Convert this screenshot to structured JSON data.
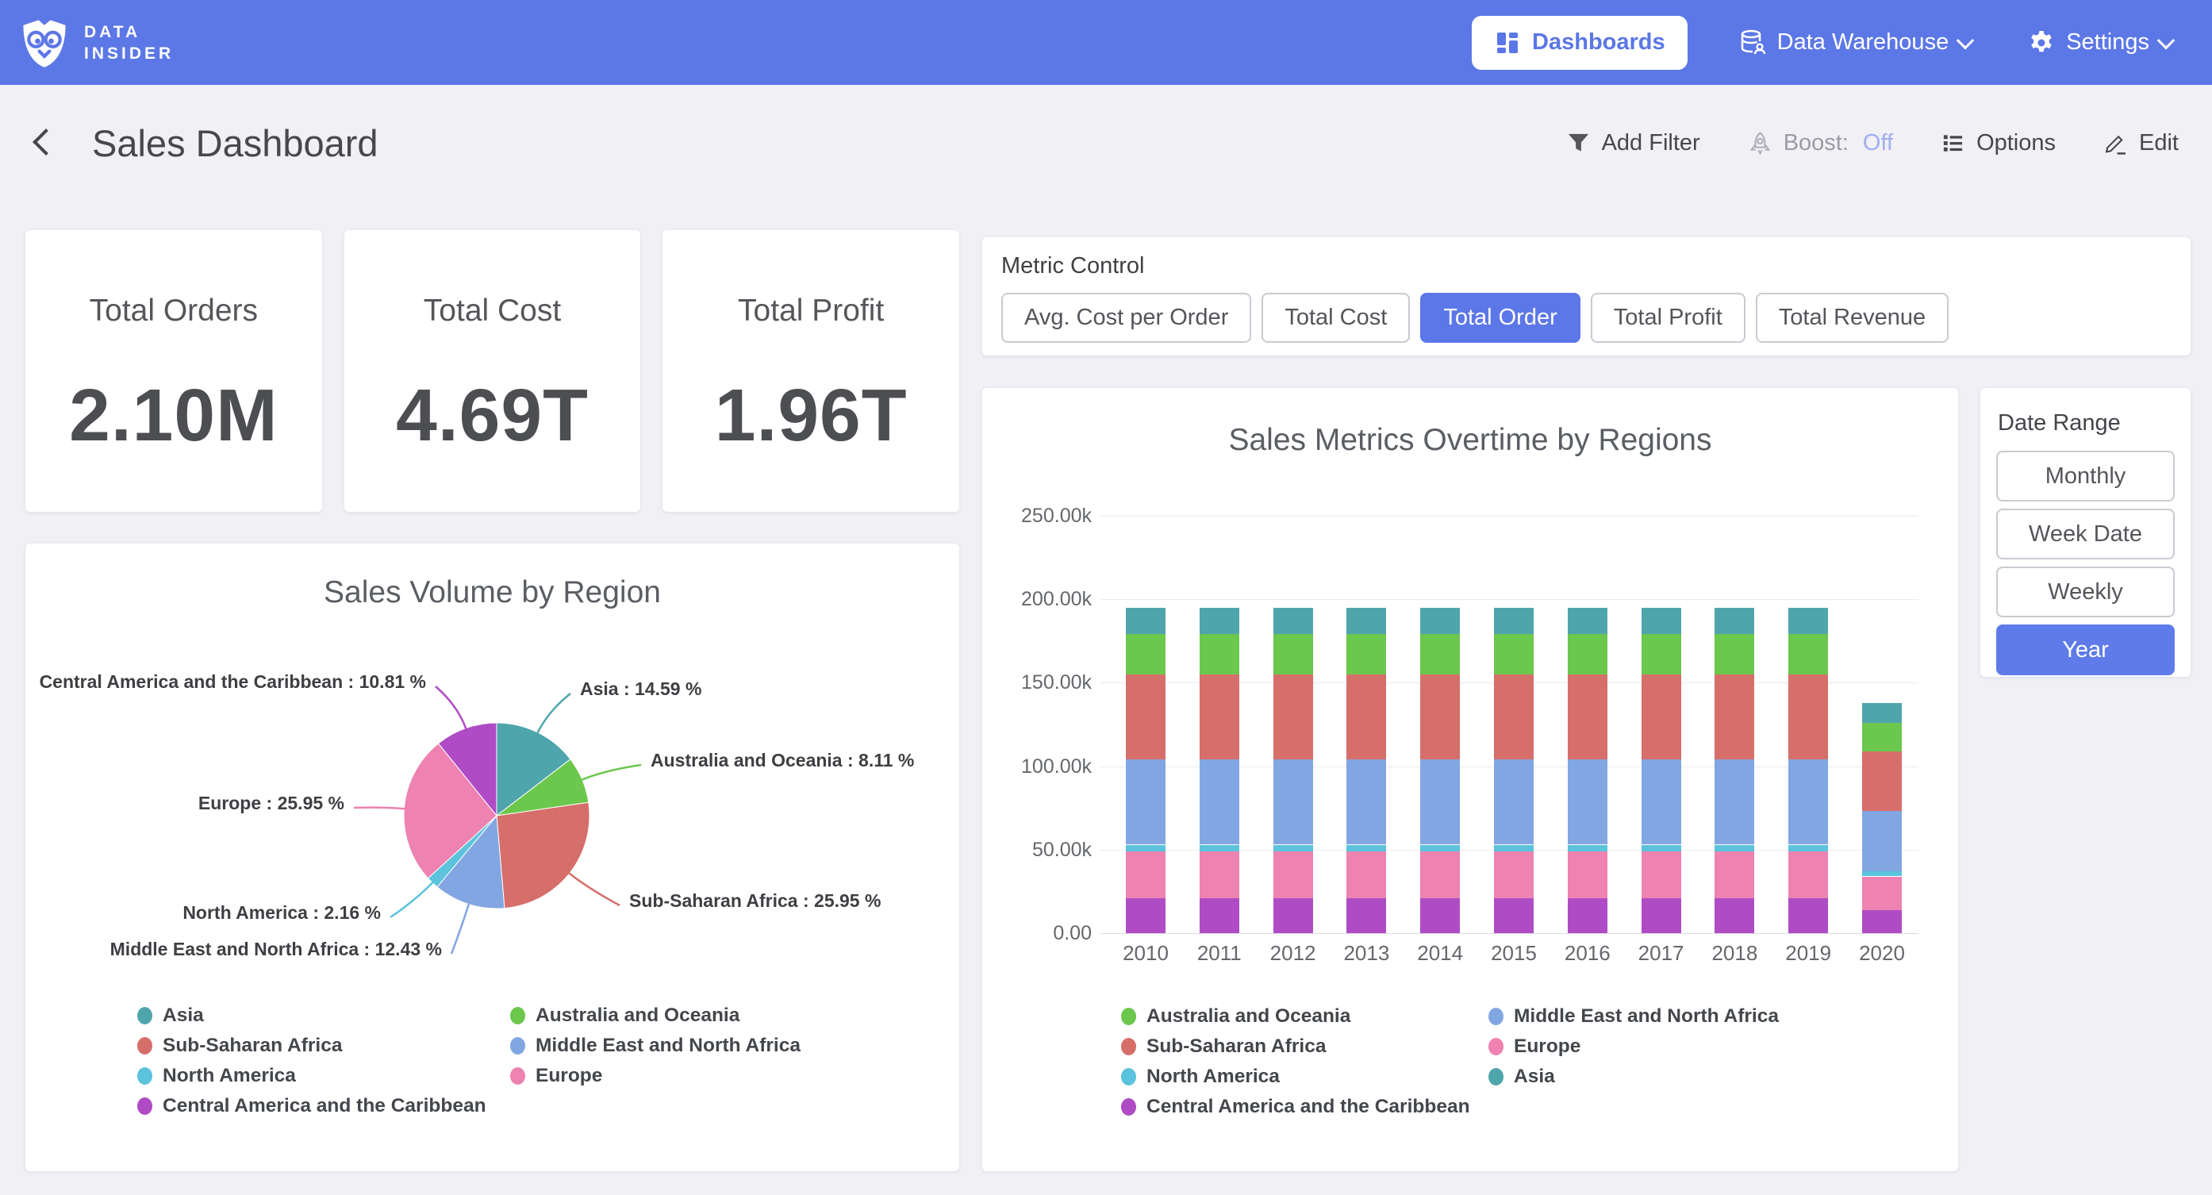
{
  "colors": {
    "accent": "#5C77E8",
    "navbar": "#5C77E6",
    "boost_off": "#9FAFEF",
    "page_background": "#F0F0F5"
  },
  "navbar": {
    "logo_line1": "DATA",
    "logo_line2": "INSIDER",
    "items": [
      {
        "label": "Dashboards",
        "active": true
      },
      {
        "label": "Data Warehouse",
        "has_dropdown": true
      },
      {
        "label": "Settings",
        "has_dropdown": true
      }
    ]
  },
  "header": {
    "title": "Sales Dashboard",
    "actions": {
      "add_filter": "Add Filter",
      "boost_label": "Boost:",
      "boost_state": "Off",
      "options": "Options",
      "edit": "Edit"
    }
  },
  "kpis": [
    {
      "title": "Total Orders",
      "value": "2.10M"
    },
    {
      "title": "Total Cost",
      "value": "4.69T"
    },
    {
      "title": "Total Profit",
      "value": "1.96T"
    }
  ],
  "metric_control": {
    "label": "Metric Control",
    "options": [
      {
        "label": "Avg. Cost per Order",
        "selected": false
      },
      {
        "label": "Total Cost",
        "selected": false
      },
      {
        "label": "Total Order",
        "selected": true
      },
      {
        "label": "Total Profit",
        "selected": false
      },
      {
        "label": "Total Revenue",
        "selected": false
      }
    ]
  },
  "date_range": {
    "label": "Date Range",
    "options": [
      {
        "label": "Monthly",
        "selected": false
      },
      {
        "label": "Week Date",
        "selected": false
      },
      {
        "label": "Weekly",
        "selected": false
      },
      {
        "label": "Year",
        "selected": true
      }
    ]
  },
  "chart_data": [
    {
      "type": "pie",
      "title": "Sales Volume by Region",
      "slices": [
        {
          "label": "Asia",
          "pct": 14.59,
          "color": "#4FA5AC"
        },
        {
          "label": "Australia and Oceania",
          "pct": 8.11,
          "color": "#6CC74D"
        },
        {
          "label": "Sub-Saharan Africa",
          "pct": 25.95,
          "color": "#D66E6A"
        },
        {
          "label": "Middle East and North Africa",
          "pct": 12.43,
          "color": "#82A6E2"
        },
        {
          "label": "North America",
          "pct": 2.16,
          "color": "#5BC3DB"
        },
        {
          "label": "Europe",
          "pct": 25.95,
          "color": "#EE82B1"
        },
        {
          "label": "Central America and the Caribbean",
          "pct": 10.81,
          "color": "#AF4CC5"
        }
      ],
      "legend": [
        [
          "Asia",
          "Sub-Saharan Africa",
          "North America",
          "Central America and the Caribbean"
        ],
        [
          "Australia and Oceania",
          "Middle East and North Africa",
          "Europe"
        ]
      ]
    },
    {
      "type": "bar",
      "stacked": true,
      "title": "Sales Metrics Overtime by Regions",
      "categories": [
        "2010",
        "2011",
        "2012",
        "2013",
        "2014",
        "2015",
        "2016",
        "2017",
        "2018",
        "2019",
        "2020"
      ],
      "series": [
        {
          "name": "Central America and the Caribbean",
          "color": "#AF4CC5",
          "values": [
            21000,
            21000,
            21000,
            21000,
            21000,
            21000,
            21000,
            21000,
            21000,
            21000,
            14000
          ]
        },
        {
          "name": "Asia",
          "color": "#EE82B1",
          "values": [
            28000,
            28000,
            28000,
            28000,
            28000,
            28000,
            28000,
            28000,
            28000,
            28000,
            20000
          ]
        },
        {
          "name": "North America",
          "color": "#5BC3DB",
          "values": [
            4000,
            4000,
            4000,
            4000,
            4000,
            4000,
            4000,
            4000,
            4000,
            4000,
            3000
          ]
        },
        {
          "name": "Europe",
          "color": "#82A6E2",
          "values": [
            51000,
            51000,
            51000,
            51000,
            51000,
            51000,
            51000,
            51000,
            51000,
            51000,
            36000
          ]
        },
        {
          "name": "Sub-Saharan Africa",
          "color": "#D66E6A",
          "values": [
            51000,
            51000,
            51000,
            51000,
            51000,
            51000,
            51000,
            51000,
            51000,
            51000,
            36000
          ]
        },
        {
          "name": "Middle East and North Africa",
          "color": "#6CC74D",
          "values": [
            24000,
            24000,
            24000,
            24000,
            24000,
            24000,
            24000,
            24000,
            24000,
            24000,
            17000
          ]
        },
        {
          "name": "Australia and Oceania",
          "color": "#4FA5AC",
          "values": [
            16000,
            16000,
            16000,
            16000,
            16000,
            16000,
            16000,
            16000,
            16000,
            16000,
            12000
          ]
        }
      ],
      "ylim": [
        0,
        250000
      ],
      "y_ticks": [
        "0.00",
        "50.00k",
        "100.00k",
        "150.00k",
        "200.00k",
        "250.00k"
      ],
      "legend": [
        [
          "Australia and Oceania",
          "Sub-Saharan Africa",
          "North America",
          "Central America and the Caribbean"
        ],
        [
          "Middle East and North Africa",
          "Europe",
          "Asia"
        ]
      ]
    }
  ]
}
